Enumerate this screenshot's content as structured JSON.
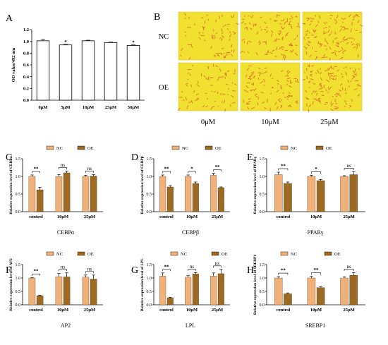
{
  "colors": {
    "nc": "#F0B07A",
    "oe": "#9C6A22",
    "barA": "#FFFFFF",
    "photo": "#F2E030",
    "cell": "#D2522A"
  },
  "panelA": {
    "letter": "A",
    "chart_data": {
      "type": "bar",
      "categories": [
        "0μM",
        "5μM",
        "10μM",
        "25μM",
        "50μM"
      ],
      "values": [
        1.01,
        0.94,
        1.01,
        0.98,
        0.93
      ],
      "errors": [
        0.02,
        0.01,
        0.01,
        0.01,
        0.01
      ],
      "significance": [
        "",
        "*",
        "",
        "",
        "*"
      ],
      "ylabel": "OD value/492 nm",
      "ylim": [
        0,
        1.2
      ],
      "yticks": [
        "0.0",
        "0.2",
        "0.4",
        "0.6",
        "0.8",
        "1.0",
        "1.2"
      ]
    }
  },
  "panelB": {
    "letter": "B",
    "rows": [
      "NC",
      "OE"
    ],
    "cols": [
      "0μM",
      "10μM",
      "25μM"
    ]
  },
  "legend": {
    "nc": "NC",
    "oe": "OE"
  },
  "panels": [
    {
      "letter": "C",
      "gene": "CEBPα",
      "ylabel": "Relative expression level of CEBPα",
      "chart_data": {
        "type": "bar",
        "categories": [
          "control",
          "10μM",
          "25μM"
        ],
        "series": [
          {
            "name": "NC",
            "values": [
              1.0,
              1.0,
              1.0
            ],
            "errors": [
              0.04,
              0.05,
              0.03
            ]
          },
          {
            "name": "OE",
            "values": [
              0.62,
              1.1,
              1.01
            ],
            "errors": [
              0.07,
              0.05,
              0.04
            ]
          }
        ],
        "significance": [
          "**",
          "ns",
          "ns"
        ],
        "ylim": [
          0,
          1.5
        ],
        "yticks": [
          "0.0",
          "0.5",
          "1.0",
          "1.5"
        ]
      }
    },
    {
      "letter": "D",
      "gene": "CEBPβ",
      "ylabel": "Relative expression level of CEBPβ",
      "chart_data": {
        "type": "bar",
        "categories": [
          "control",
          "10μM",
          "25μM"
        ],
        "series": [
          {
            "name": "NC",
            "values": [
              1.0,
              1.0,
              1.03
            ],
            "errors": [
              0.04,
              0.04,
              0.06
            ]
          },
          {
            "name": "OE",
            "values": [
              0.7,
              0.8,
              0.68
            ],
            "errors": [
              0.04,
              0.04,
              0.02
            ]
          }
        ],
        "significance": [
          "**",
          "*",
          "**"
        ],
        "ylim": [
          0,
          1.5
        ],
        "yticks": [
          "0.0",
          "0.5",
          "1.0",
          "1.5"
        ]
      }
    },
    {
      "letter": "E",
      "gene": "PPARγ",
      "ylabel": "Relative expression level of PPARγ",
      "chart_data": {
        "type": "bar",
        "categories": [
          "control",
          "10μM",
          "25μM"
        ],
        "series": [
          {
            "name": "NC",
            "values": [
              1.05,
              1.0,
              1.0
            ],
            "errors": [
              0.07,
              0.03,
              0.02
            ]
          },
          {
            "name": "OE",
            "values": [
              0.8,
              0.88,
              1.05
            ],
            "errors": [
              0.04,
              0.03,
              0.08
            ]
          }
        ],
        "significance": [
          "**",
          "*",
          "ns"
        ],
        "ylim": [
          0,
          1.5
        ],
        "yticks": [
          "0.0",
          "0.5",
          "1.0",
          "1.5"
        ]
      }
    },
    {
      "letter": "F",
      "gene": "AP2",
      "ylabel": "Relative expression level of AP2",
      "chart_data": {
        "type": "bar",
        "categories": [
          "control",
          "10μM",
          "25μM"
        ],
        "series": [
          {
            "name": "NC",
            "values": [
              1.0,
              1.05,
              1.03
            ],
            "errors": [
              0.02,
              0.12,
              0.08
            ]
          },
          {
            "name": "OE",
            "values": [
              0.34,
              1.04,
              0.96
            ],
            "errors": [
              0.02,
              0.15,
              0.15
            ]
          }
        ],
        "significance": [
          "**",
          "ns",
          "ns"
        ],
        "ylim": [
          0,
          1.5
        ],
        "yticks": [
          "0.0",
          "0.5",
          "1.0",
          "1.5"
        ]
      }
    },
    {
      "letter": "G",
      "gene": "LPL",
      "ylabel": "Relative expression level of LPL",
      "chart_data": {
        "type": "bar",
        "categories": [
          "control",
          "10μM",
          "25μM"
        ],
        "series": [
          {
            "name": "NC",
            "values": [
              1.07,
              1.03,
              1.07
            ],
            "errors": [
              0.12,
              0.07,
              0.12
            ]
          },
          {
            "name": "OE",
            "values": [
              0.26,
              1.15,
              1.16
            ],
            "errors": [
              0.02,
              0.05,
              0.16
            ]
          }
        ],
        "significance": [
          "**",
          "ns",
          "ns"
        ],
        "ylim": [
          0,
          1.5
        ],
        "yticks": [
          "0.0",
          "0.5",
          "1.0",
          "1.5"
        ]
      }
    },
    {
      "letter": "H",
      "gene": "SREBP1",
      "ylabel": "Relative expression level of SREBP1",
      "chart_data": {
        "type": "bar",
        "categories": [
          "control",
          "10μM",
          "25μM"
        ],
        "series": [
          {
            "name": "NC",
            "values": [
              1.0,
              1.0,
              1.0
            ],
            "errors": [
              0.05,
              0.06,
              0.04
            ]
          },
          {
            "name": "OE",
            "values": [
              0.41,
              0.64,
              1.1
            ],
            "errors": [
              0.03,
              0.03,
              0.1
            ]
          }
        ],
        "significance": [
          "**",
          "**",
          "ns"
        ],
        "ylim": [
          0,
          1.5
        ],
        "yticks": [
          "0.0",
          "0.5",
          "1.0",
          "1.5"
        ]
      }
    }
  ]
}
